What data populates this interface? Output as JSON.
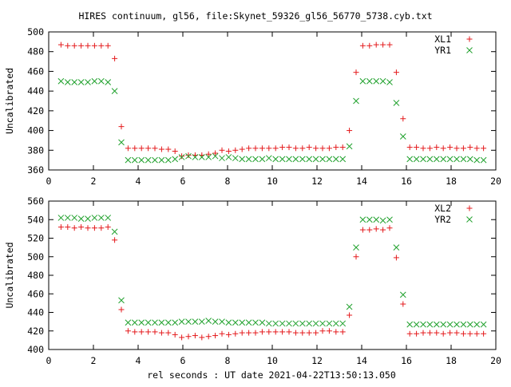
{
  "title": "HIRES continuum, gl56, file:Skynet_59326_gl56_56770_5738.cyb.txt",
  "xlabel": "rel seconds : UT date 2021-04-22T13:50:13.050",
  "colors": {
    "red": "#e41a1c",
    "green": "#21a12e"
  },
  "chart_data": [
    {
      "type": "scatter",
      "ylabel": "Uncalibrated",
      "xlim": [
        0,
        20
      ],
      "ylim": [
        360,
        500
      ],
      "xticks": [
        0,
        2,
        4,
        6,
        8,
        10,
        12,
        14,
        16,
        18,
        20
      ],
      "yticks": [
        360,
        380,
        400,
        420,
        440,
        460,
        480,
        500
      ],
      "grid": false,
      "legend_position": "top-right",
      "x": [
        0.55,
        0.85,
        1.15,
        1.45,
        1.75,
        2.05,
        2.35,
        2.65,
        2.95,
        3.25,
        3.55,
        3.85,
        4.15,
        4.45,
        4.75,
        5.05,
        5.35,
        5.65,
        5.95,
        6.25,
        6.55,
        6.85,
        7.15,
        7.45,
        7.75,
        8.05,
        8.35,
        8.65,
        8.95,
        9.25,
        9.55,
        9.85,
        10.15,
        10.45,
        10.75,
        11.05,
        11.35,
        11.65,
        11.95,
        12.25,
        12.55,
        12.85,
        13.15,
        13.45,
        13.75,
        14.05,
        14.35,
        14.65,
        14.95,
        15.25,
        15.55,
        15.85,
        16.15,
        16.45,
        16.75,
        17.05,
        17.35,
        17.65,
        17.95,
        18.25,
        18.55,
        18.85,
        19.15,
        19.45
      ],
      "series": [
        {
          "name": "XL1",
          "color": "red",
          "marker": "plus",
          "values": [
            487,
            486,
            486,
            486,
            486,
            486,
            486,
            486,
            473,
            404,
            382,
            382,
            382,
            382,
            382,
            381,
            381,
            379,
            374,
            375,
            375,
            375,
            376,
            377,
            380,
            379,
            380,
            381,
            382,
            382,
            382,
            382,
            382,
            383,
            383,
            382,
            382,
            383,
            382,
            382,
            382,
            383,
            383,
            400,
            459,
            486,
            486,
            487,
            487,
            487,
            459,
            412,
            383,
            383,
            382,
            382,
            383,
            382,
            383,
            382,
            382,
            383,
            382,
            382
          ]
        },
        {
          "name": "YR1",
          "color": "green",
          "marker": "cross",
          "values": [
            450,
            449,
            449,
            449,
            449,
            450,
            450,
            449,
            440,
            388,
            370,
            370,
            370,
            370,
            370,
            370,
            370,
            371,
            373,
            374,
            373,
            373,
            373,
            374,
            372,
            373,
            372,
            371,
            371,
            371,
            371,
            372,
            371,
            371,
            371,
            371,
            371,
            371,
            371,
            371,
            371,
            371,
            371,
            384,
            430,
            450,
            450,
            450,
            450,
            449,
            428,
            394,
            371,
            371,
            371,
            371,
            371,
            371,
            371,
            371,
            371,
            371,
            370,
            370
          ]
        }
      ]
    },
    {
      "type": "scatter",
      "ylabel": "Uncalibrated",
      "xlim": [
        0,
        20
      ],
      "ylim": [
        400,
        560
      ],
      "xticks": [
        0,
        2,
        4,
        6,
        8,
        10,
        12,
        14,
        16,
        18,
        20
      ],
      "yticks": [
        400,
        420,
        440,
        460,
        480,
        500,
        520,
        540,
        560
      ],
      "grid": false,
      "legend_position": "top-right",
      "x": [
        0.55,
        0.85,
        1.15,
        1.45,
        1.75,
        2.05,
        2.35,
        2.65,
        2.95,
        3.25,
        3.55,
        3.85,
        4.15,
        4.45,
        4.75,
        5.05,
        5.35,
        5.65,
        5.95,
        6.25,
        6.55,
        6.85,
        7.15,
        7.45,
        7.75,
        8.05,
        8.35,
        8.65,
        8.95,
        9.25,
        9.55,
        9.85,
        10.15,
        10.45,
        10.75,
        11.05,
        11.35,
        11.65,
        11.95,
        12.25,
        12.55,
        12.85,
        13.15,
        13.45,
        13.75,
        14.05,
        14.35,
        14.65,
        14.95,
        15.25,
        15.55,
        15.85,
        16.15,
        16.45,
        16.75,
        17.05,
        17.35,
        17.65,
        17.95,
        18.25,
        18.55,
        18.85,
        19.15,
        19.45
      ],
      "series": [
        {
          "name": "XL2",
          "color": "red",
          "marker": "plus",
          "values": [
            532,
            532,
            531,
            532,
            531,
            531,
            531,
            532,
            518,
            443,
            420,
            419,
            419,
            419,
            419,
            418,
            418,
            416,
            413,
            414,
            415,
            413,
            414,
            415,
            417,
            416,
            417,
            418,
            418,
            418,
            419,
            419,
            419,
            419,
            419,
            418,
            418,
            418,
            418,
            420,
            420,
            419,
            419,
            437,
            500,
            529,
            529,
            530,
            529,
            531,
            499,
            449,
            417,
            417,
            418,
            418,
            418,
            417,
            418,
            418,
            417,
            417,
            417,
            417
          ]
        },
        {
          "name": "YR2",
          "color": "green",
          "marker": "cross",
          "values": [
            542,
            542,
            542,
            541,
            541,
            542,
            542,
            542,
            527,
            453,
            429,
            429,
            429,
            429,
            429,
            429,
            429,
            429,
            430,
            430,
            430,
            430,
            431,
            430,
            430,
            429,
            429,
            429,
            429,
            429,
            429,
            428,
            428,
            428,
            428,
            428,
            428,
            428,
            428,
            428,
            428,
            428,
            428,
            446,
            510,
            540,
            540,
            540,
            539,
            540,
            510,
            459,
            427,
            427,
            427,
            427,
            427,
            427,
            427,
            427,
            427,
            427,
            427,
            427
          ]
        }
      ]
    }
  ]
}
